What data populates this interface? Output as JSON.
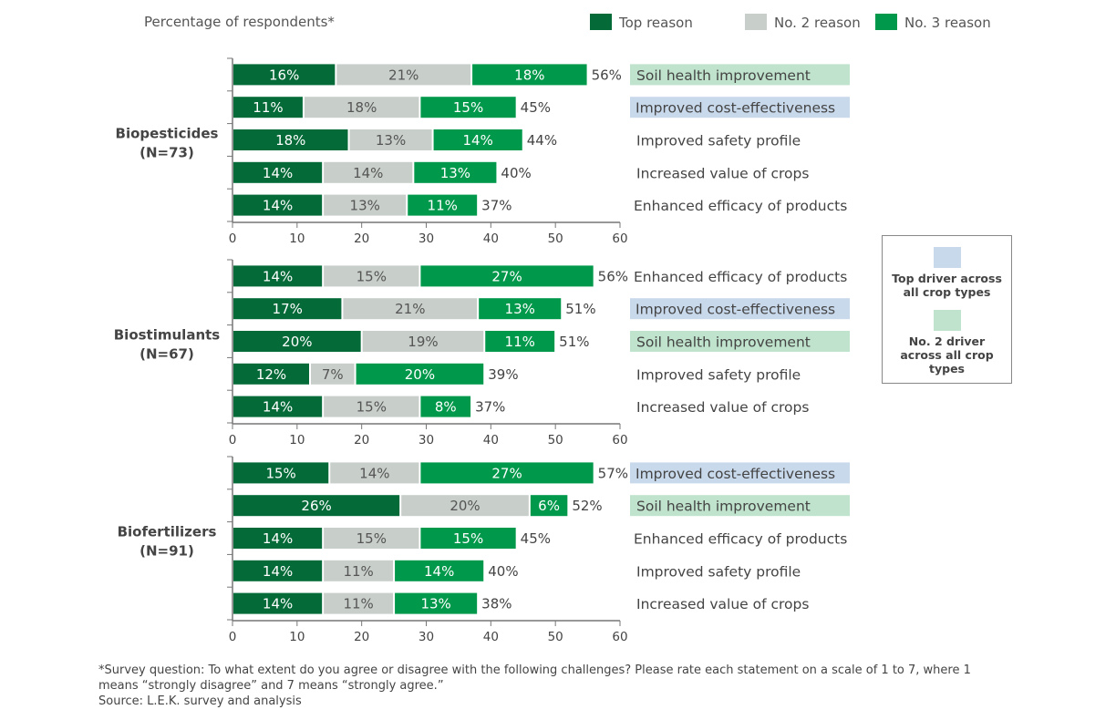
{
  "colors": {
    "top": "#046a38",
    "no2": "#c8ceca",
    "no3": "#00984a",
    "highlight_top": "#c9d9ec",
    "highlight_no2": "#bfe3cc"
  },
  "chart_data": {
    "type": "bar",
    "orientation": "horizontal",
    "stacked": true,
    "ylabel": "Percentage of respondents*",
    "legend": [
      "Top reason",
      "No. 2 reason",
      "No. 3 reason"
    ],
    "legend_position": "top-right",
    "xlim": [
      0,
      60
    ],
    "xticks": [
      "0",
      "10",
      "20",
      "30",
      "40",
      "50",
      "60"
    ],
    "panels": [
      {
        "label": "Biopesticides",
        "n": "(N=73)",
        "rows": [
          {
            "reason": "Soil health improvement",
            "values": [
              16,
              21,
              18
            ],
            "total": "56%",
            "highlight": "no2"
          },
          {
            "reason": "Improved cost-effectiveness",
            "values": [
              11,
              18,
              15
            ],
            "total": "45%",
            "highlight": "top"
          },
          {
            "reason": "Improved safety profile",
            "values": [
              18,
              13,
              14
            ],
            "total": "44%",
            "highlight": ""
          },
          {
            "reason": "Increased value of crops",
            "values": [
              14,
              14,
              13
            ],
            "total": "40%",
            "highlight": ""
          },
          {
            "reason": "Enhanced efficacy of products",
            "values": [
              14,
              13,
              11
            ],
            "total": "37%",
            "highlight": ""
          }
        ]
      },
      {
        "label": "Biostimulants",
        "n": "(N=67)",
        "rows": [
          {
            "reason": "Enhanced efficacy of products",
            "values": [
              14,
              15,
              27
            ],
            "total": "56%",
            "highlight": ""
          },
          {
            "reason": "Improved cost-effectiveness",
            "values": [
              17,
              21,
              13
            ],
            "total": "51%",
            "highlight": "top"
          },
          {
            "reason": "Soil health improvement",
            "values": [
              20,
              19,
              11
            ],
            "total": "51%",
            "highlight": "no2"
          },
          {
            "reason": "Improved safety profile",
            "values": [
              12,
              7,
              20
            ],
            "total": "39%",
            "highlight": ""
          },
          {
            "reason": "Increased value of crops",
            "values": [
              14,
              15,
              8
            ],
            "total": "37%",
            "highlight": ""
          }
        ]
      },
      {
        "label": "Biofertilizers",
        "n": "(N=91)",
        "rows": [
          {
            "reason": "Improved cost-effectiveness",
            "values": [
              15,
              14,
              27
            ],
            "total": "57%",
            "highlight": "top"
          },
          {
            "reason": "Soil health improvement",
            "values": [
              26,
              20,
              6
            ],
            "total": "52%",
            "highlight": "no2"
          },
          {
            "reason": "Enhanced efficacy of products",
            "values": [
              14,
              15,
              15
            ],
            "total": "45%",
            "highlight": ""
          },
          {
            "reason": "Improved safety profile",
            "values": [
              14,
              11,
              14
            ],
            "total": "40%",
            "highlight": ""
          },
          {
            "reason": "Increased value of crops",
            "values": [
              14,
              11,
              13
            ],
            "total": "38%",
            "highlight": ""
          }
        ]
      }
    ]
  },
  "driver_legend": {
    "top": "Top driver across all crop types",
    "no2": "No. 2 driver across all crop types"
  },
  "footnote": {
    "survey": "*Survey question: To what extent do you agree or disagree with the following challenges? Please rate each statement on a scale of 1 to 7, where 1 means “strongly disagree” and 7 means “strongly agree.”",
    "source": "Source: L.E.K. survey and analysis"
  }
}
